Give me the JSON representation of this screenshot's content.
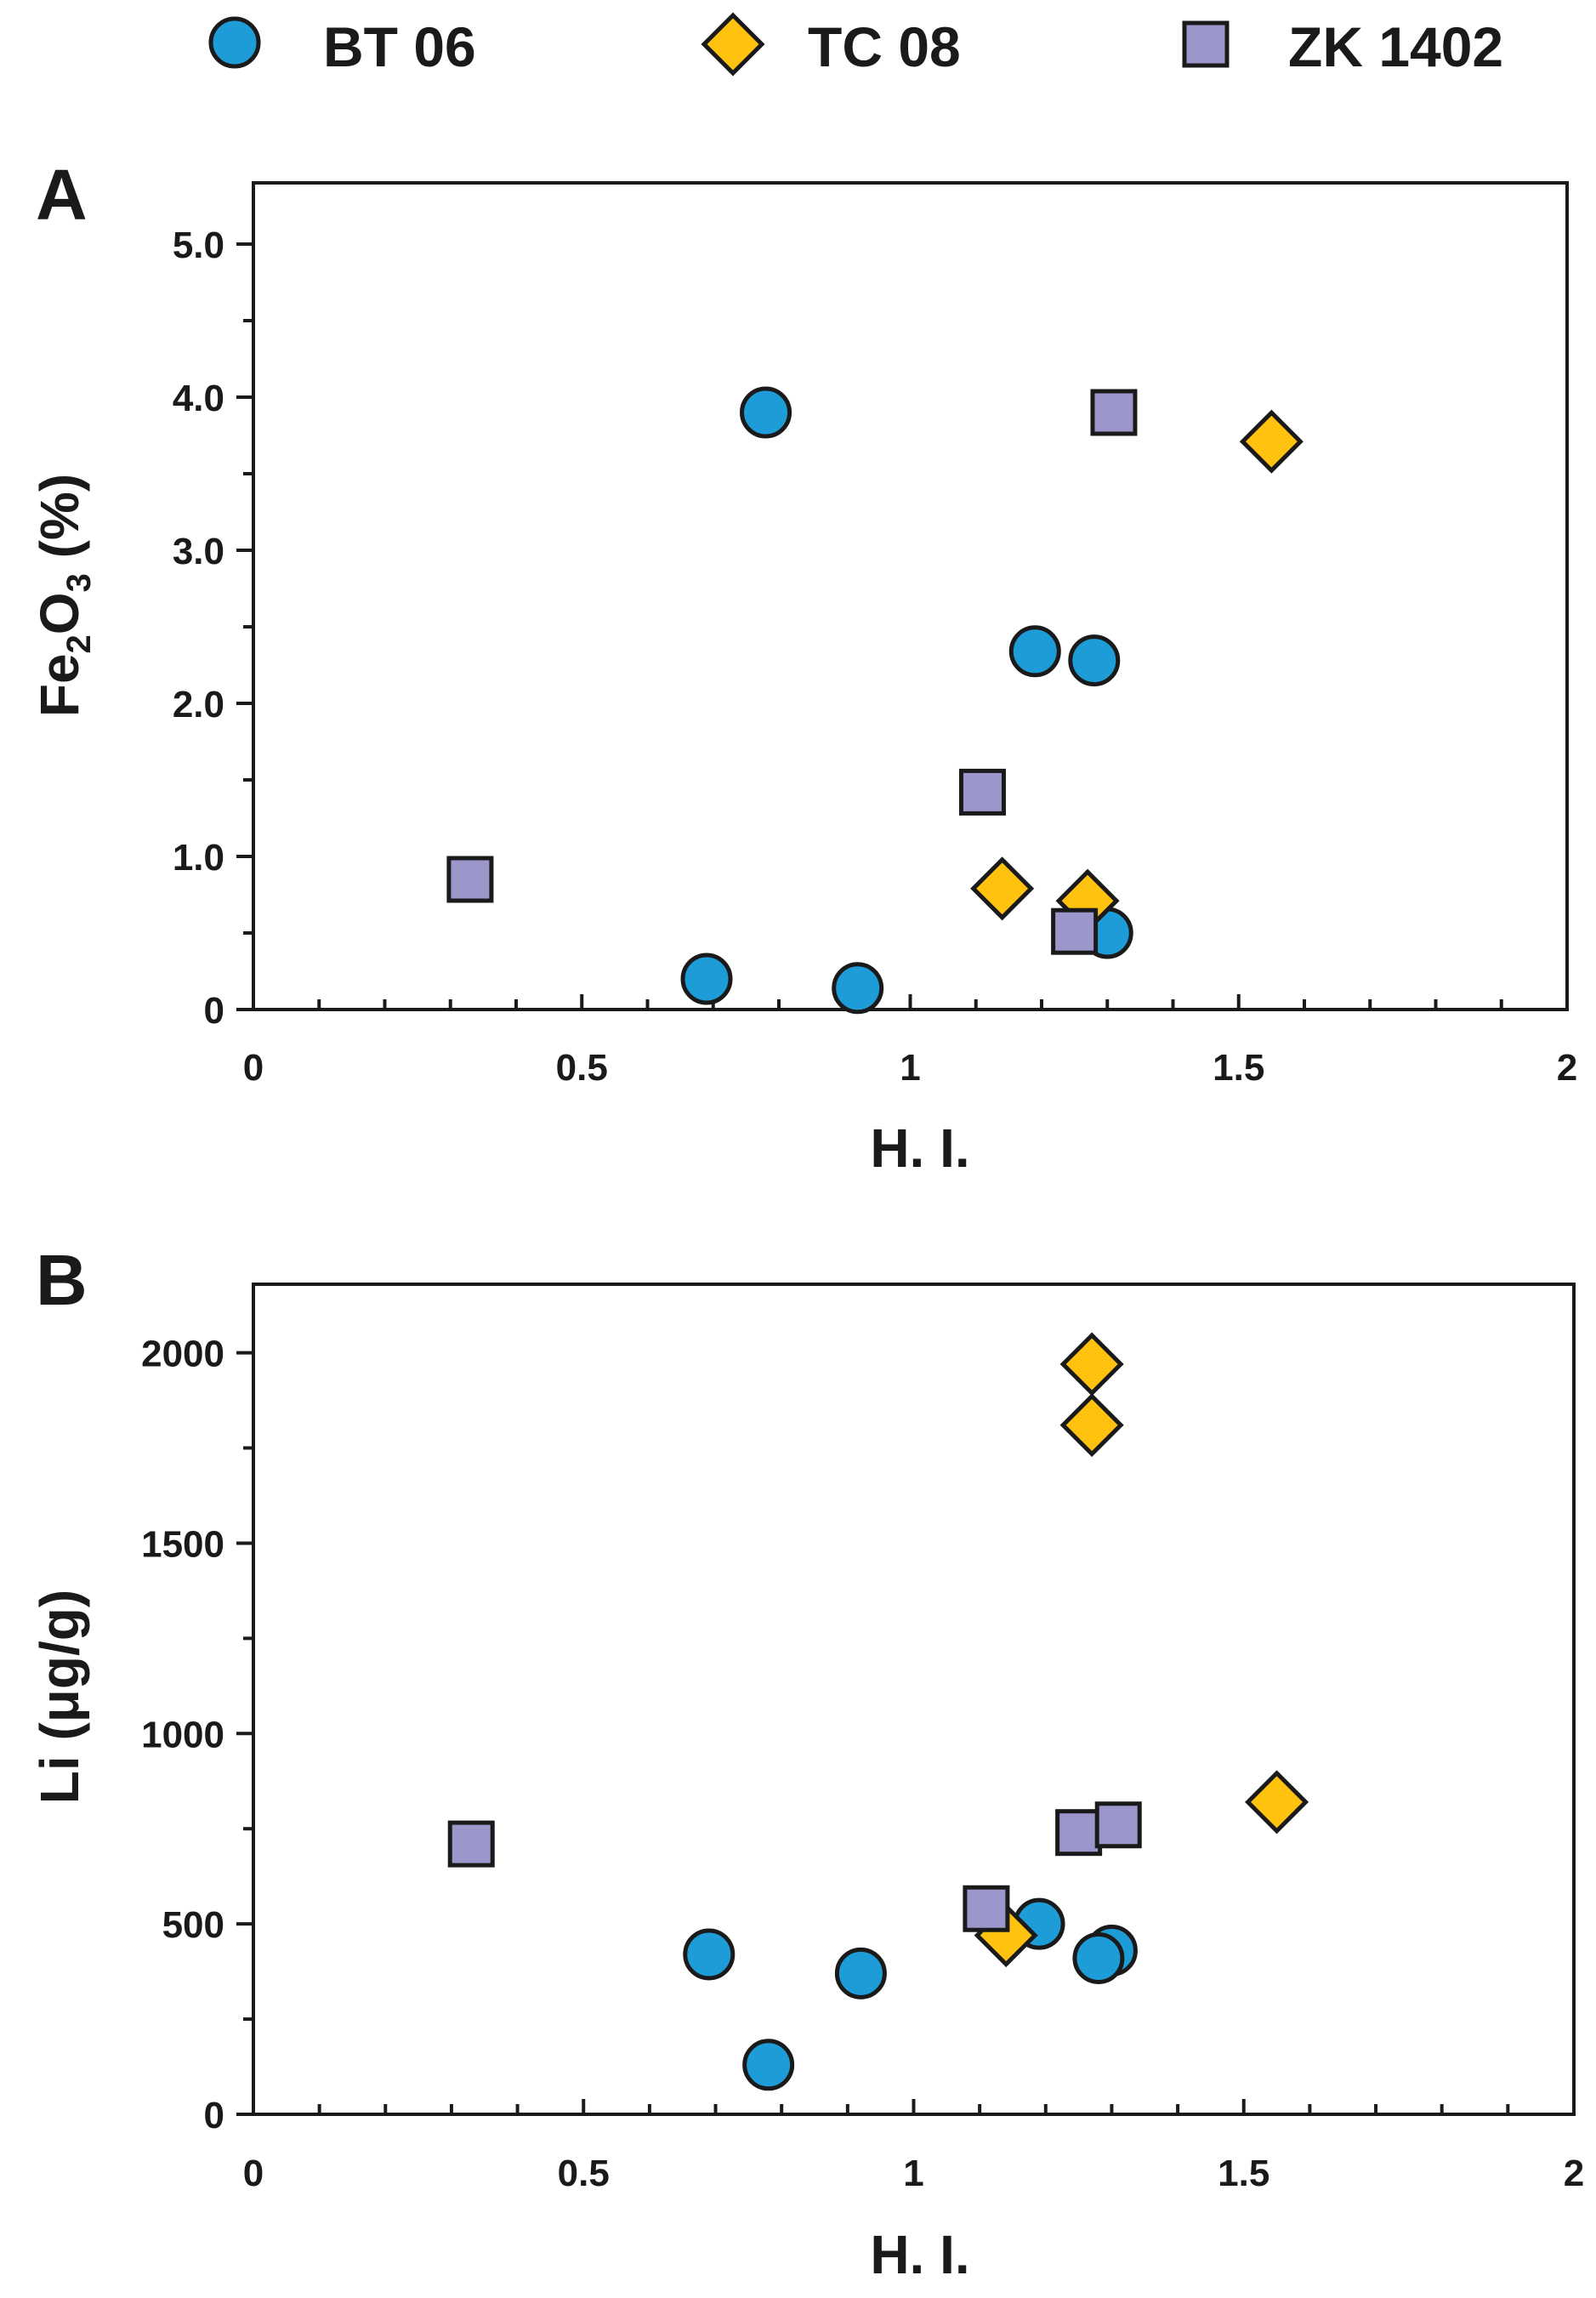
{
  "legend": [
    {
      "label": "BT 06",
      "marker": "circle",
      "color": "#1E9CD7"
    },
    {
      "label": "TC 08",
      "marker": "diamond",
      "color": "#FFC20E"
    },
    {
      "label": "ZK 1402",
      "marker": "square",
      "color": "#9B97CB"
    }
  ],
  "chart_data": [
    {
      "type": "scatter",
      "panel": "A",
      "title": "",
      "xlabel": "H. I.",
      "ylabel_main": "Fe",
      "ylabel_sub1": "2",
      "ylabel_mid": "O",
      "ylabel_sub2": "3",
      "ylabel_tail": " (%)",
      "xlim": [
        0,
        2
      ],
      "ylim": [
        0,
        5.4
      ],
      "xticks": [
        {
          "value": 0,
          "label": "0"
        },
        {
          "value": 0.5,
          "label": "0.5"
        },
        {
          "value": 1,
          "label": "1"
        },
        {
          "value": 1.5,
          "label": "1.5"
        },
        {
          "value": 2,
          "label": "2"
        }
      ],
      "yticks": [
        {
          "value": 0,
          "label": "0"
        },
        {
          "value": 1,
          "label": "1.0"
        },
        {
          "value": 2,
          "label": "2.0"
        },
        {
          "value": 3,
          "label": "3.0"
        },
        {
          "value": 4,
          "label": "4.0"
        },
        {
          "value": 5,
          "label": "5.0"
        }
      ],
      "x_minor_step": 0.1,
      "y_minor_step": 0.5,
      "series": [
        {
          "name": "BT 06",
          "marker": "circle",
          "color": "#1E9CD7",
          "points": [
            [
              0.78,
              3.9
            ],
            [
              0.69,
              0.2
            ],
            [
              0.92,
              0.14
            ],
            [
              1.19,
              2.34
            ],
            [
              1.28,
              2.28
            ],
            [
              1.3,
              0.5
            ]
          ]
        },
        {
          "name": "TC 08",
          "marker": "diamond",
          "color": "#FFC20E",
          "points": [
            [
              1.55,
              3.71
            ],
            [
              1.14,
              0.79
            ],
            [
              1.27,
              0.71
            ]
          ]
        },
        {
          "name": "ZK 1402",
          "marker": "square",
          "color": "#9B97CB",
          "points": [
            [
              0.33,
              0.85
            ],
            [
              1.31,
              3.9
            ],
            [
              1.11,
              1.42
            ],
            [
              1.25,
              0.51
            ]
          ]
        }
      ]
    },
    {
      "type": "scatter",
      "panel": "B",
      "title": "",
      "xlabel": "H. I.",
      "ylabel": "Li (μg/g)",
      "xlim": [
        0,
        2
      ],
      "ylim": [
        0,
        2180
      ],
      "xticks": [
        {
          "value": 0,
          "label": "0"
        },
        {
          "value": 0.5,
          "label": "0.5"
        },
        {
          "value": 1,
          "label": "1"
        },
        {
          "value": 1.5,
          "label": "1.5"
        },
        {
          "value": 2,
          "label": "2"
        }
      ],
      "yticks": [
        {
          "value": 0,
          "label": "0"
        },
        {
          "value": 500,
          "label": "500"
        },
        {
          "value": 1000,
          "label": "1000"
        },
        {
          "value": 1500,
          "label": "1500"
        },
        {
          "value": 2000,
          "label": "2000"
        }
      ],
      "x_minor_step": 0.1,
      "y_minor_step": 250,
      "series": [
        {
          "name": "BT 06",
          "marker": "circle",
          "color": "#1E9CD7",
          "points": [
            [
              0.69,
              420
            ],
            [
              0.78,
              130
            ],
            [
              0.92,
              370
            ],
            [
              1.19,
              500
            ],
            [
              1.3,
              430
            ],
            [
              1.28,
              410
            ]
          ]
        },
        {
          "name": "TC 08",
          "marker": "diamond",
          "color": "#FFC20E",
          "points": [
            [
              1.27,
              1970
            ],
            [
              1.27,
              1810
            ],
            [
              1.55,
              820
            ],
            [
              1.14,
              470
            ]
          ]
        },
        {
          "name": "ZK 1402",
          "marker": "square",
          "color": "#9B97CB",
          "points": [
            [
              0.33,
              710
            ],
            [
              1.11,
              540
            ],
            [
              1.25,
              740
            ],
            [
              1.31,
              760
            ]
          ]
        }
      ]
    }
  ]
}
